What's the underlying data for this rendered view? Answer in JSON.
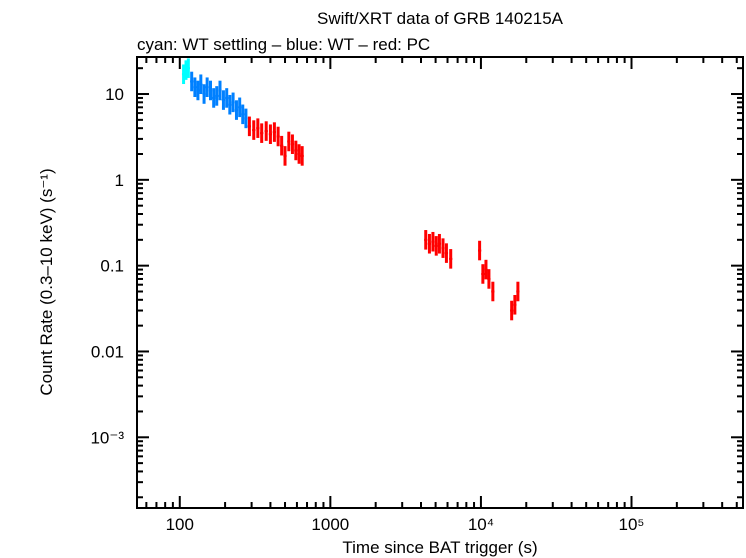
{
  "chart_data": {
    "type": "scatter",
    "title": "Swift/XRT data of GRB 140215A",
    "subtitle": "cyan: WT settling – blue: WT – red: PC",
    "xlabel": "Time since BAT trigger (s)",
    "ylabel": "Count Rate (0.3–10 keV) (s⁻¹)",
    "xscale": "log",
    "yscale": "log",
    "xlim": [
      52,
      550000
    ],
    "ylim": [
      0.00015,
      27
    ],
    "grid": false,
    "x_ticks": [
      {
        "value": 100,
        "label": "100"
      },
      {
        "value": 1000,
        "label": "1000"
      },
      {
        "value": 10000,
        "label": "10⁴"
      },
      {
        "value": 100000,
        "label": "10⁵"
      }
    ],
    "y_ticks": [
      {
        "value": 10,
        "label": "10"
      },
      {
        "value": 1,
        "label": "1"
      },
      {
        "value": 0.1,
        "label": "0.1"
      },
      {
        "value": 0.01,
        "label": "0.01"
      },
      {
        "value": 0.001,
        "label": "10⁻³"
      }
    ],
    "series": [
      {
        "mode": "WT settling",
        "color": "#00ffff",
        "x": [
          106,
          110,
          114
        ],
        "y": [
          17,
          19,
          20
        ]
      },
      {
        "mode": "WT",
        "color": "#0080ff",
        "x": [
          120,
          126,
          132,
          138,
          145,
          152,
          160,
          168,
          176,
          185,
          195,
          205,
          215,
          226,
          238,
          250,
          262,
          275
        ],
        "y": [
          14,
          12,
          11,
          13,
          10,
          12,
          11,
          9,
          9.5,
          11,
          8.5,
          9,
          7.5,
          8,
          6.5,
          7,
          5.8,
          5.2
        ]
      },
      {
        "mode": "PC",
        "color": "#ff0000",
        "x": [
          290,
          310,
          330,
          350,
          375,
          400,
          425,
          450,
          475,
          500,
          530,
          560,
          590,
          620,
          650,
          4300,
          4550,
          4800,
          5050,
          5300,
          5600,
          5900,
          6300,
          9800,
          10300,
          10800,
          11300,
          12000,
          16000,
          16800,
          17600
        ],
        "y": [
          4.2,
          3.8,
          4,
          3.5,
          3.7,
          3.4,
          3.6,
          3.2,
          2.5,
          1.9,
          2.8,
          2.6,
          2.2,
          2,
          1.9,
          0.2,
          0.18,
          0.19,
          0.17,
          0.18,
          0.16,
          0.14,
          0.12,
          0.15,
          0.08,
          0.09,
          0.07,
          0.05,
          0.03,
          0.035,
          0.05
        ]
      }
    ]
  }
}
